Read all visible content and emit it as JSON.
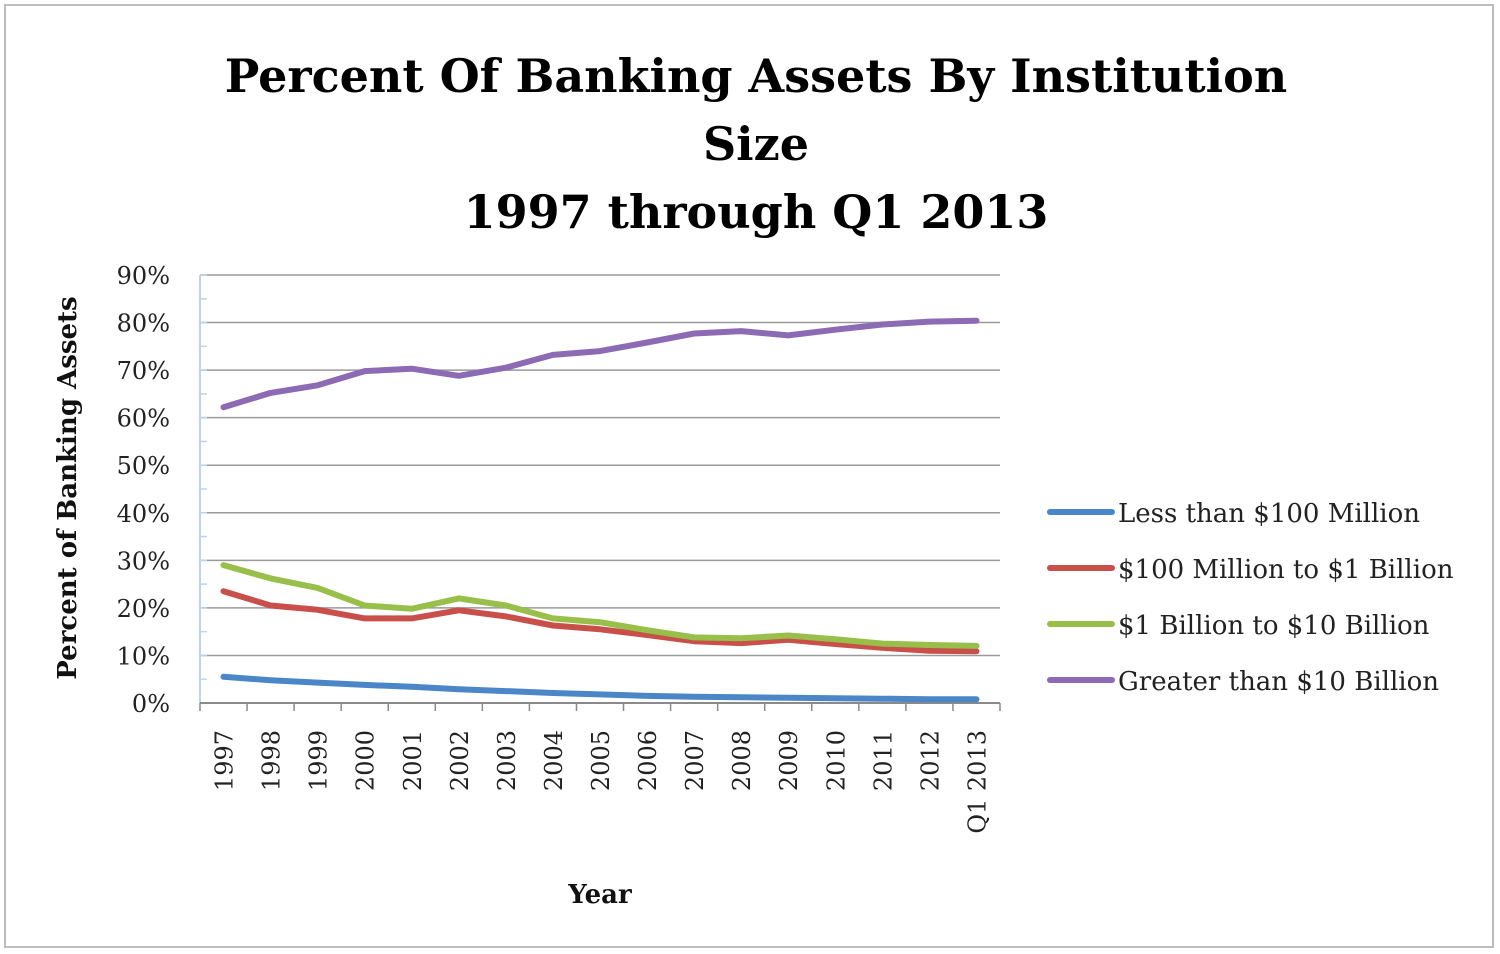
{
  "chart_data": {
    "type": "line",
    "title_lines": [
      "Percent Of Banking Assets By Institution",
      "Size",
      "1997 through Q1 2013"
    ],
    "xlabel": "Year",
    "ylabel": "Percent of Banking Assets",
    "x": [
      "1997",
      "1998",
      "1999",
      "2000",
      "2001",
      "2002",
      "2003",
      "2004",
      "2005",
      "2006",
      "2007",
      "2008",
      "2009",
      "2010",
      "2011",
      "2012",
      "Q1 2013"
    ],
    "ylim": [
      0,
      90
    ],
    "yticks": [
      "0%",
      "10%",
      "20%",
      "30%",
      "40%",
      "50%",
      "60%",
      "70%",
      "80%",
      "90%"
    ],
    "grid": true,
    "legend_position": "right",
    "series": [
      {
        "name": "Less than $100 Million",
        "color": "#4a86c8",
        "values": [
          5.5,
          4.8,
          4.3,
          3.8,
          3.4,
          2.9,
          2.5,
          2.1,
          1.8,
          1.5,
          1.3,
          1.2,
          1.1,
          1.0,
          0.9,
          0.8,
          0.8
        ]
      },
      {
        "name": "$100 Million to $1 Billion",
        "color": "#c9504a",
        "values": [
          23.5,
          20.5,
          19.6,
          17.8,
          17.8,
          19.5,
          18.2,
          16.3,
          15.5,
          14.3,
          13.0,
          12.6,
          13.3,
          12.4,
          11.6,
          11.0,
          10.9
        ]
      },
      {
        "name": "$1 Billion to $10 Billion",
        "color": "#98bf4a",
        "values": [
          29.0,
          26.2,
          24.2,
          20.5,
          19.8,
          22.0,
          20.5,
          17.8,
          17.0,
          15.3,
          13.8,
          13.6,
          14.2,
          13.4,
          12.5,
          12.2,
          12.0
        ]
      },
      {
        "name": "Greater than $10 Billion",
        "color": "#8c6ab4",
        "values": [
          62.2,
          65.2,
          66.8,
          69.8,
          70.3,
          68.8,
          70.5,
          73.2,
          74.0,
          75.8,
          77.7,
          78.2,
          77.3,
          78.5,
          79.6,
          80.2,
          80.4
        ]
      }
    ]
  }
}
